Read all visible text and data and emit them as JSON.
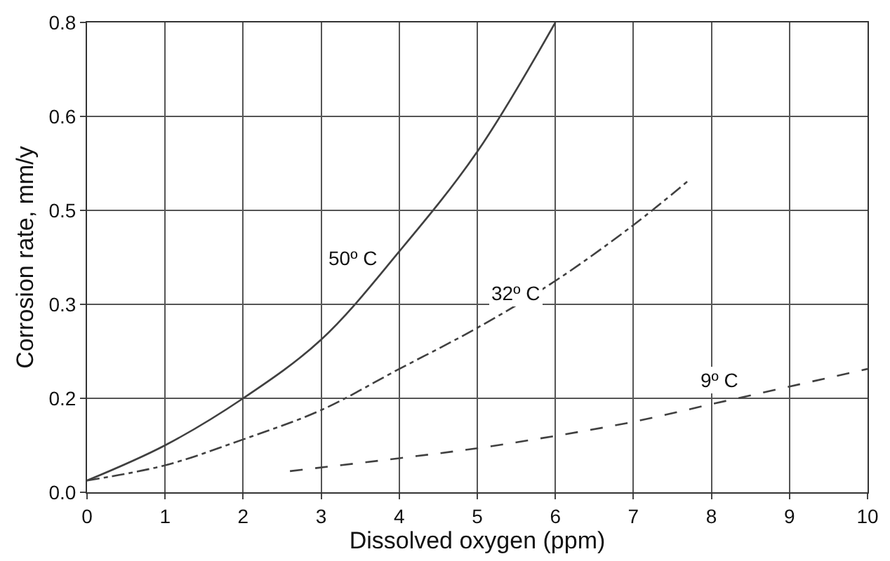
{
  "chart_data": {
    "type": "line",
    "xlabel": "Dissolved oxygen (ppm)",
    "ylabel": "Corrosion rate, mm/y",
    "xlim": [
      0,
      10
    ],
    "xticks": [
      0,
      1,
      2,
      3,
      4,
      5,
      6,
      7,
      8,
      9,
      10
    ],
    "ylim": [
      0,
      0.8
    ],
    "yticks": [
      {
        "value": 0,
        "label": "0.0"
      },
      {
        "value": 0.16,
        "label": "0.2"
      },
      {
        "value": 0.32,
        "label": "0.3"
      },
      {
        "value": 0.48,
        "label": "0.5"
      },
      {
        "value": 0.64,
        "label": "0.6"
      },
      {
        "value": 0.8,
        "label": "0.8"
      }
    ],
    "grid": true,
    "marker": "none",
    "series": [
      {
        "color": "#404040",
        "line_style": "solid",
        "x": [
          0,
          1,
          2,
          3,
          4,
          5,
          6
        ],
        "values": [
          0.02,
          0.08,
          0.16,
          0.26,
          0.41,
          0.58,
          0.8
        ]
      },
      {
        "color": "#404040",
        "line_style": "dashdot",
        "x": [
          0,
          1,
          2,
          3,
          4,
          5,
          6,
          7,
          7.7
        ],
        "values": [
          0.02,
          0.046,
          0.09,
          0.14,
          0.21,
          0.28,
          0.36,
          0.455,
          0.53
        ]
      },
      {
        "color": "#404040",
        "line_style": "dashed",
        "x": [
          2.6,
          4,
          5,
          6,
          7,
          8,
          9,
          10
        ],
        "values": [
          0.036,
          0.058,
          0.075,
          0.096,
          0.12,
          0.15,
          0.18,
          0.21
        ]
      }
    ],
    "annotations": [
      {
        "text": "50º C",
        "x": 3.4,
        "y": 0.4
      },
      {
        "text": "32º C",
        "x": 5.5,
        "y": 0.34
      },
      {
        "text": "9º C",
        "x": 8.1,
        "y": 0.19
      }
    ]
  }
}
